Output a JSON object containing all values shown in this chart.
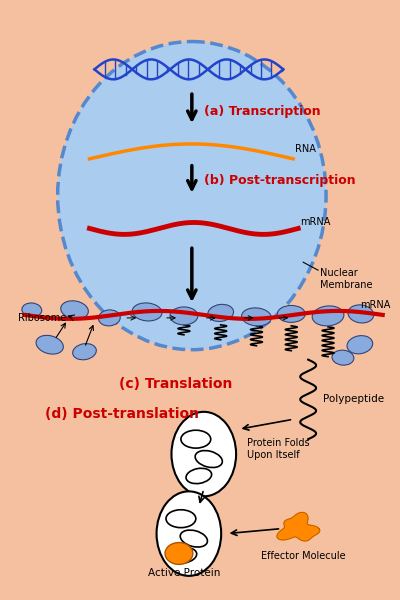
{
  "bg_cell_color": "#F5C0A0",
  "bg_cell_edge": "#E08080",
  "nucleus_color": "#AACCEE",
  "nucleus_edge": "#5588CC",
  "ribosome_color": "#88AADD",
  "mrna_color": "#CC0000",
  "rna_color": "#FF8800",
  "dna_color": "#2244CC",
  "label_color_red": "#CC0000",
  "label_color_black": "#000000",
  "orange_protein": "#FF8800",
  "labels": {
    "a": "(a) Transcription",
    "b": "(b) Post-transcription",
    "c": "(c) Translation",
    "d": "(d) Post-translation",
    "rna": "RNA",
    "mrna1": "mRNA",
    "mrna2": "mRNA",
    "nuclear_membrane": "Nuclear\nMembrane",
    "ribosome": "Ribosome",
    "polypeptide": "Polypeptide",
    "protein_folds": "Protein Folds\nUpon Itself",
    "effector": "Effector Molecule",
    "active_protein": "Active Protein"
  }
}
